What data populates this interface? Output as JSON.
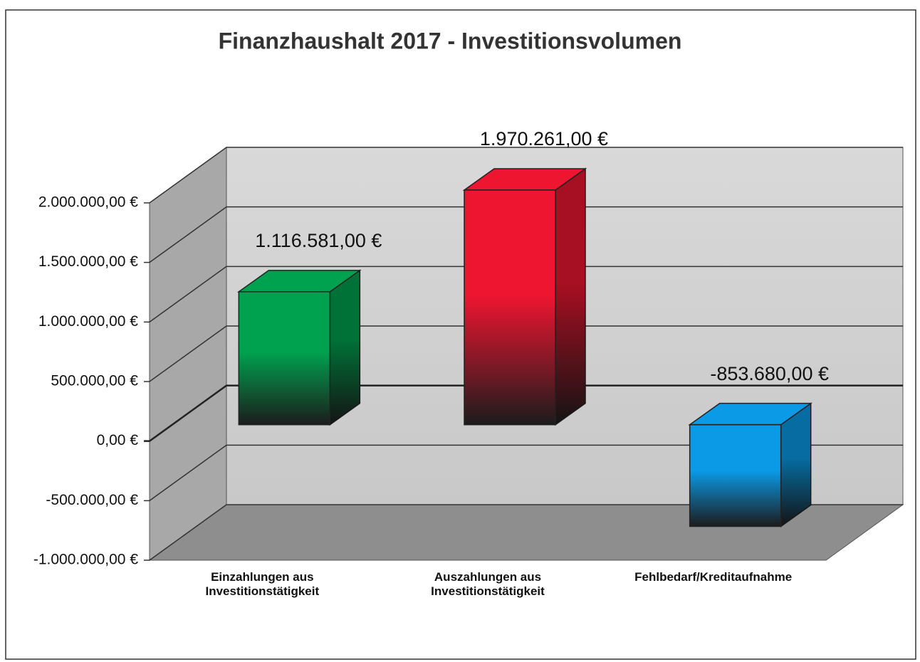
{
  "chart_data": {
    "type": "bar3d",
    "title": "Finanzhaushalt 2017 - Investitionsvolumen",
    "categories": [
      "Einzahlungen aus Investitionstätigkeit",
      "Auszahlungen aus Investitionstätigkeit",
      "Fehlbedarf/Kreditaufnahme"
    ],
    "values": [
      1116581,
      1970261,
      -853680
    ],
    "value_labels": [
      "1.116.581,00 €",
      "1.970.261,00 €",
      "-853.680,00 €"
    ],
    "colors": [
      "#00a24f",
      "#ee1530",
      "#0a9ae6"
    ],
    "ylim": [
      -1000000,
      2000000
    ],
    "yticks": [
      {
        "value": -1000000,
        "label": "-1.000.000,00 €"
      },
      {
        "value": -500000,
        "label": "-500.000,00 €"
      },
      {
        "value": 0,
        "label": "0,00 €"
      },
      {
        "value": 500000,
        "label": "500.000,00 €"
      },
      {
        "value": 1000000,
        "label": "1.000.000,00 €"
      },
      {
        "value": 1500000,
        "label": "1.500.000,00 €"
      },
      {
        "value": 2000000,
        "label": "2.000.000,00 €"
      }
    ],
    "grid": true
  }
}
